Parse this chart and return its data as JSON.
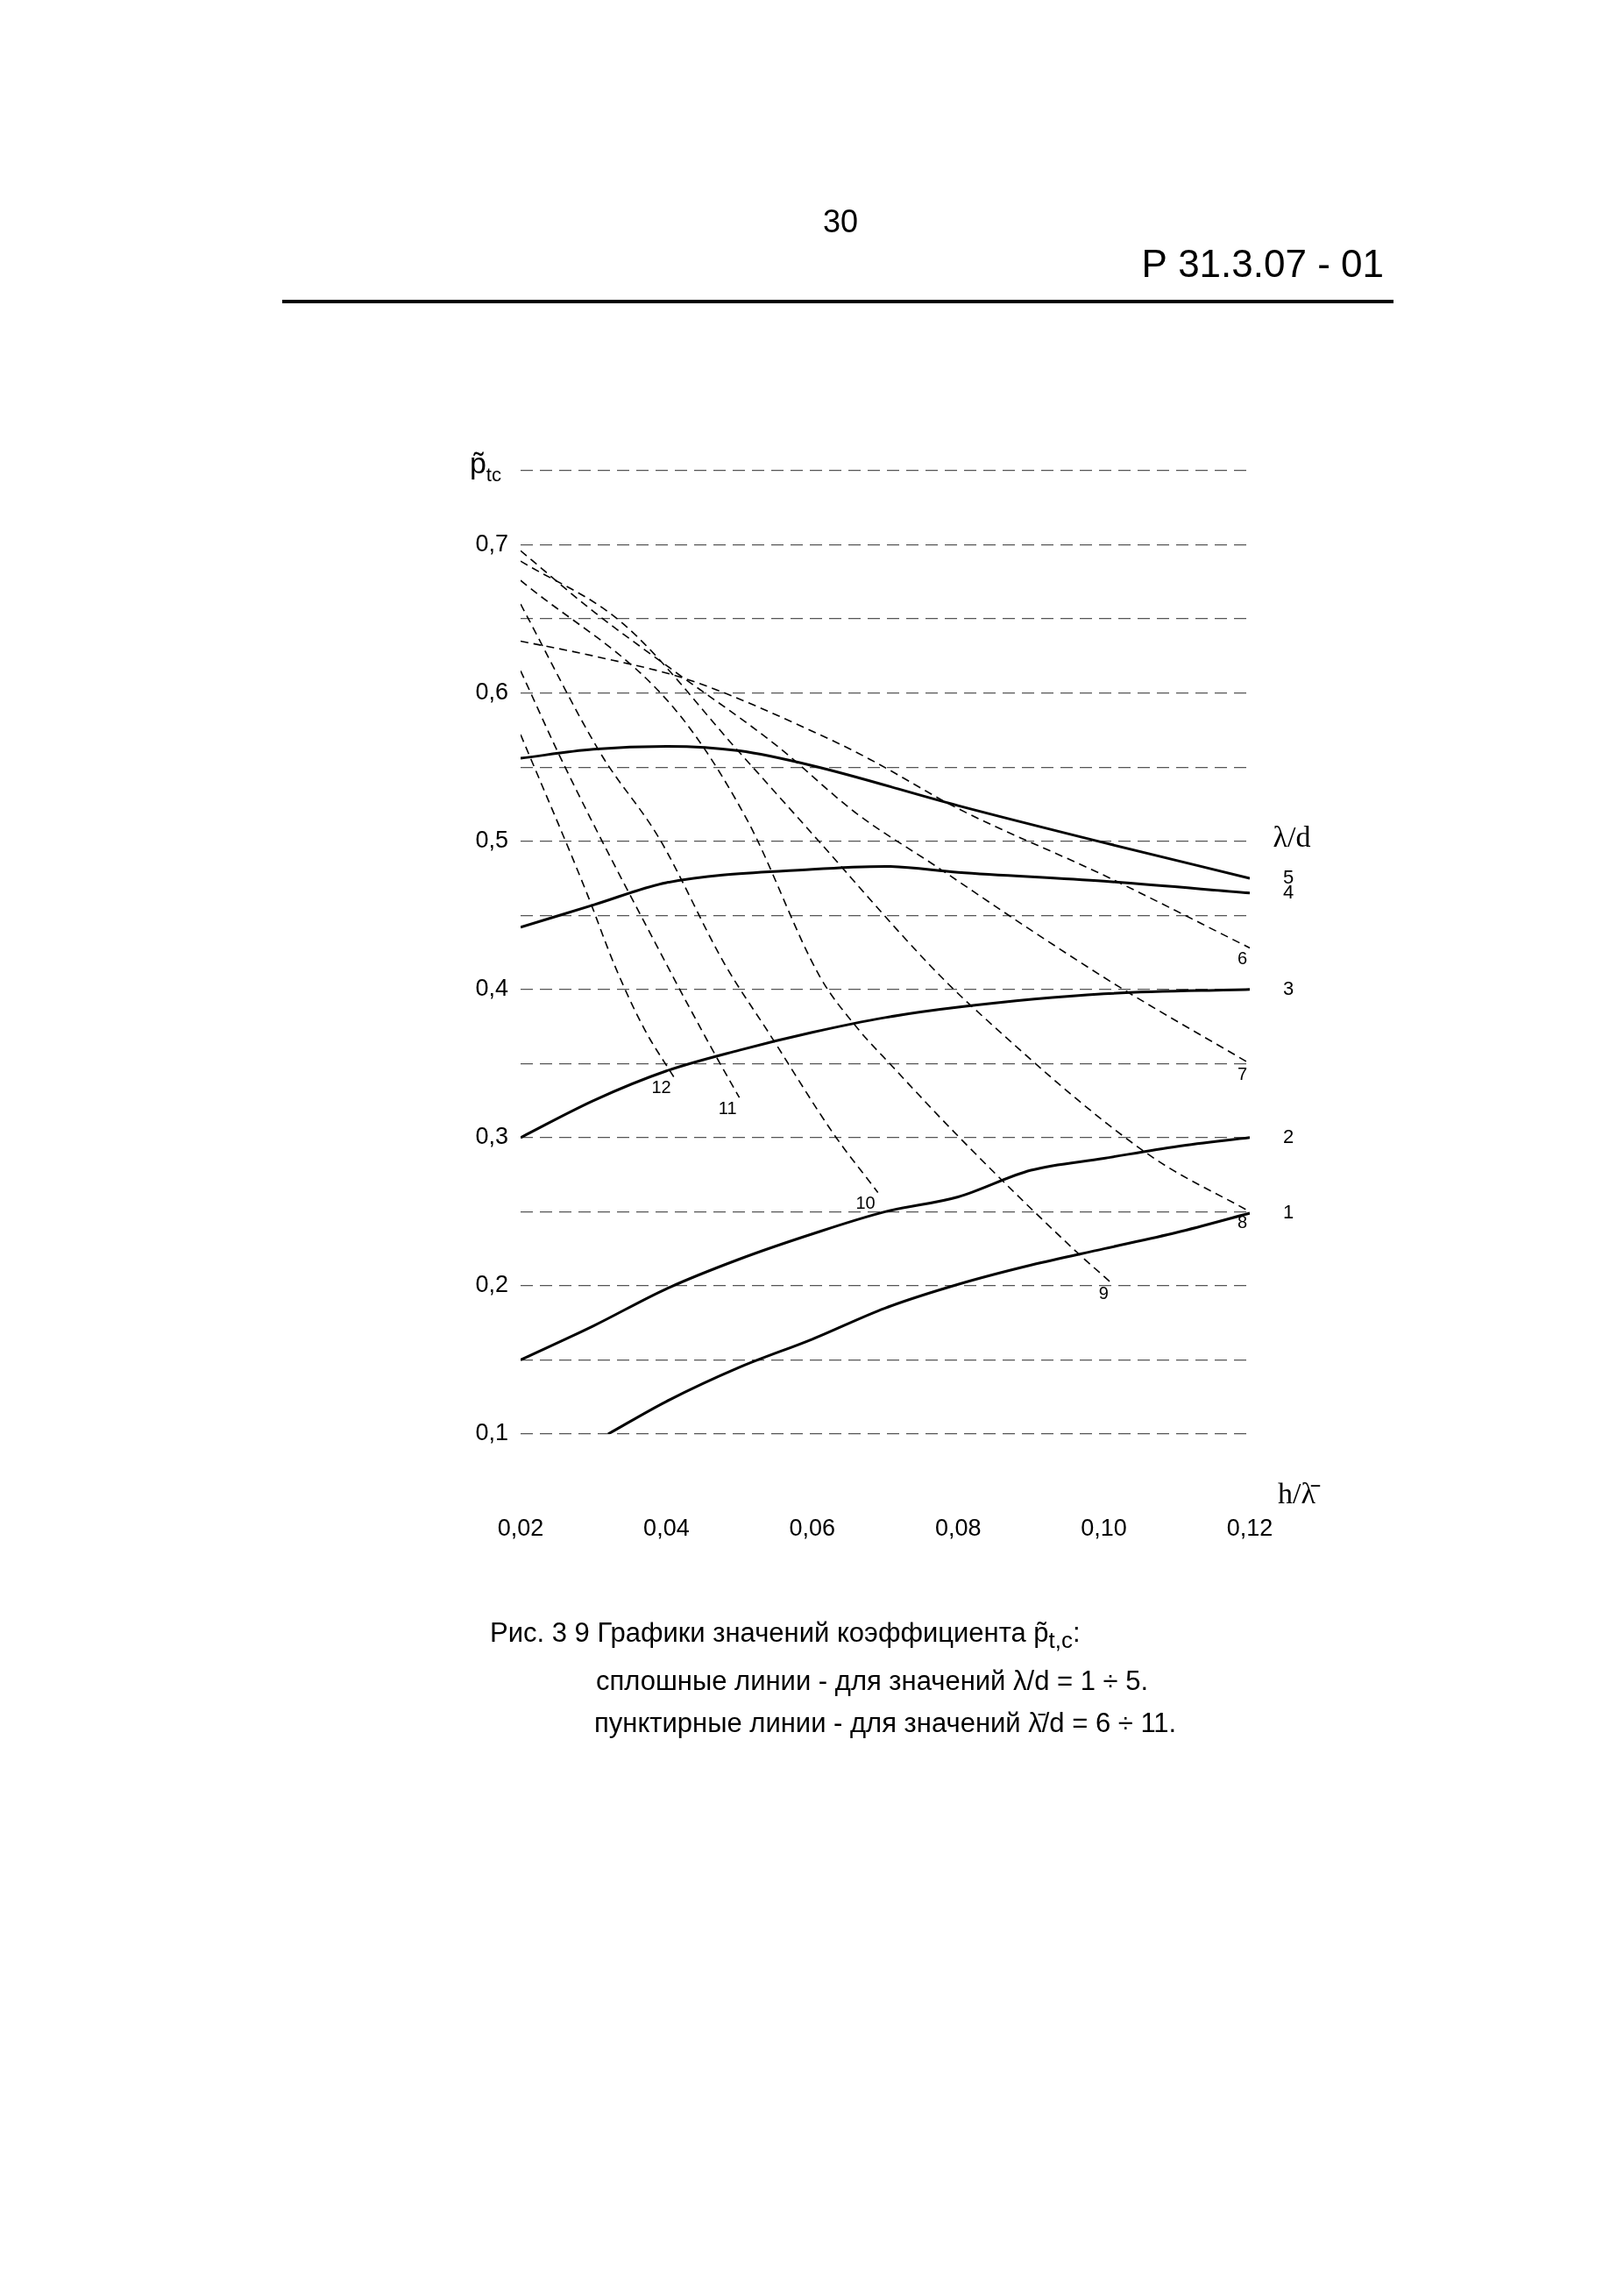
{
  "chart_data": {
    "type": "line",
    "xlabel": "h/λ̄",
    "ylabel": "p̃$_{tc}$",
    "legend_title": "λ/d",
    "annotations": [
      "30",
      "Р 31.3.07 - 01",
      "Рис. 3 9  Графики значений коэффициента p̃$_{t,c}$:",
      "сплошные линии - для значений λ/d = 1 ÷ 5.",
      "пунктирные линии -  для значений λ̄/d = 6 ÷ 11."
    ],
    "xlim": [
      0.02,
      0.12
    ],
    "ylim": [
      0.1,
      0.75
    ],
    "xticks": [
      {
        "value": 0.02,
        "label": "0,02"
      },
      {
        "value": 0.04,
        "label": "0,04"
      },
      {
        "value": 0.06,
        "label": "0,06"
      },
      {
        "value": 0.08,
        "label": "0,08"
      },
      {
        "value": 0.1,
        "label": "0,10"
      },
      {
        "value": 0.12,
        "label": "0,12"
      }
    ],
    "yticks": [
      {
        "value": 0.1,
        "label": "0,1"
      },
      {
        "value": 0.15,
        "label": null
      },
      {
        "value": 0.2,
        "label": "0,2"
      },
      {
        "value": 0.25,
        "label": null
      },
      {
        "value": 0.3,
        "label": "0,3"
      },
      {
        "value": 0.35,
        "label": null
      },
      {
        "value": 0.4,
        "label": "0,4"
      },
      {
        "value": 0.45,
        "label": null
      },
      {
        "value": 0.5,
        "label": "0,5"
      },
      {
        "value": 0.55,
        "label": null
      },
      {
        "value": 0.6,
        "label": "0,6"
      },
      {
        "value": 0.65,
        "label": null
      },
      {
        "value": 0.7,
        "label": "0,7"
      },
      {
        "value": 0.75,
        "label": null
      }
    ],
    "grid": "y",
    "series": [
      {
        "name": "1",
        "color": "#000000",
        "line_style": "solid",
        "x": [
          0.032,
          0.04,
          0.05,
          0.06,
          0.07,
          0.08,
          0.09,
          0.1,
          0.11,
          0.12
        ],
        "values": [
          0.1,
          0.122,
          0.145,
          0.164,
          0.185,
          0.201,
          0.214,
          0.225,
          0.236,
          0.249
        ]
      },
      {
        "name": "2",
        "color": "#000000",
        "line_style": "solid",
        "x": [
          0.02,
          0.03,
          0.04,
          0.05,
          0.06,
          0.07,
          0.08,
          0.09,
          0.1,
          0.11,
          0.12
        ],
        "values": [
          0.15,
          0.173,
          0.198,
          0.218,
          0.235,
          0.25,
          0.26,
          0.278,
          0.286,
          0.294,
          0.3
        ]
      },
      {
        "name": "3",
        "color": "#000000",
        "line_style": "solid",
        "x": [
          0.02,
          0.03,
          0.04,
          0.05,
          0.06,
          0.07,
          0.08,
          0.1,
          0.12
        ],
        "values": [
          0.3,
          0.325,
          0.345,
          0.359,
          0.371,
          0.381,
          0.388,
          0.397,
          0.4
        ]
      },
      {
        "name": "4",
        "color": "#000000",
        "line_style": "solid",
        "x": [
          0.02,
          0.03,
          0.04,
          0.06,
          0.07,
          0.08,
          0.1,
          0.12
        ],
        "values": [
          0.442,
          0.457,
          0.472,
          0.481,
          0.483,
          0.479,
          0.473,
          0.465
        ]
      },
      {
        "name": "5",
        "color": "#000000",
        "line_style": "solid",
        "x": [
          0.02,
          0.03,
          0.04,
          0.05,
          0.06,
          0.08,
          0.1,
          0.12
        ],
        "values": [
          0.556,
          0.562,
          0.564,
          0.561,
          0.551,
          0.524,
          0.499,
          0.475
        ]
      },
      {
        "name": "6",
        "color": "#000000",
        "line_style": "dashed",
        "x": [
          0.02,
          0.03,
          0.043,
          0.061,
          0.068,
          0.08,
          0.1,
          0.12
        ],
        "values": [
          0.635,
          0.625,
          0.609,
          0.572,
          0.555,
          0.522,
          0.477,
          0.428
        ]
      },
      {
        "name": "7",
        "color": "#000000",
        "line_style": "dashed",
        "x": [
          0.02,
          0.03,
          0.041,
          0.055,
          0.066,
          0.077,
          0.09,
          0.102,
          0.12
        ],
        "values": [
          0.696,
          0.655,
          0.615,
          0.565,
          0.519,
          0.483,
          0.44,
          0.402,
          0.35
        ]
      },
      {
        "name": "8",
        "color": "#000000",
        "line_style": "dashed",
        "x": [
          0.02,
          0.034,
          0.05,
          0.06,
          0.076,
          0.082,
          0.106,
          0.12
        ],
        "values": [
          0.689,
          0.647,
          0.56,
          0.505,
          0.417,
          0.388,
          0.289,
          0.25
        ]
      },
      {
        "name": "9",
        "color": "#000000",
        "line_style": "dashed",
        "x": [
          0.02,
          0.041,
          0.051,
          0.061,
          0.066,
          0.071,
          0.08,
          0.096,
          0.101
        ],
        "values": [
          0.676,
          0.59,
          0.515,
          0.409,
          0.375,
          0.348,
          0.301,
          0.224,
          0.202
        ]
      },
      {
        "name": "10",
        "color": "#000000",
        "line_style": "dashed",
        "x": [
          0.02,
          0.031,
          0.039,
          0.048,
          0.054,
          0.063,
          0.069
        ],
        "values": [
          0.66,
          0.559,
          0.502,
          0.417,
          0.371,
          0.302,
          0.263
        ]
      },
      {
        "name": "11",
        "color": "#000000",
        "line_style": "dashed",
        "x": [
          0.02,
          0.026,
          0.04,
          0.046,
          0.05
        ],
        "values": [
          0.615,
          0.551,
          0.417,
          0.362,
          0.327
        ]
      },
      {
        "name": "12",
        "color": "#000000",
        "line_style": "dashed",
        "x": [
          0.02,
          0.029,
          0.033,
          0.037,
          0.041
        ],
        "values": [
          0.572,
          0.466,
          0.415,
          0.373,
          0.341
        ]
      }
    ]
  }
}
